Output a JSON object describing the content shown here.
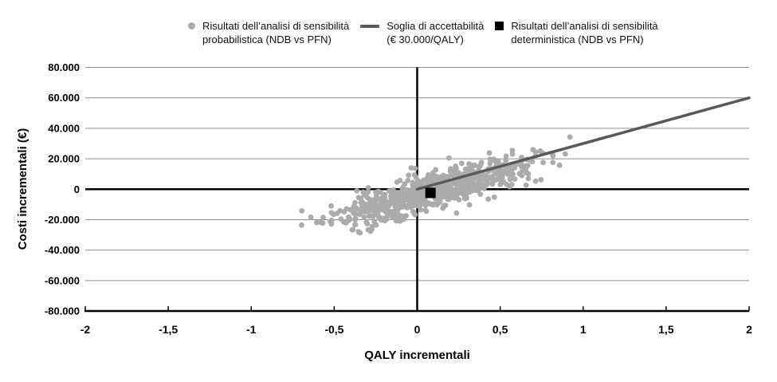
{
  "figure": {
    "background": "#ffffff"
  },
  "legend": {
    "items": [
      {
        "marker": "dot",
        "color": "#ababab",
        "label": "Risultati dell’analisi di sensibilità\nprobabilistica (NDB vs PFN)"
      },
      {
        "marker": "line",
        "color": "#595959",
        "label": "Soglia di accettabilità\n(€ 30.000/QALY)"
      },
      {
        "marker": "square",
        "color": "#000000",
        "label": "Risultati dell’analisi di sensibilità\ndeterministica (NDB vs PFN)"
      }
    ]
  },
  "chart_data": {
    "type": "scatter",
    "title": "",
    "xlabel": "QALY incrementali",
    "ylabel": "Costi incrementali (€)",
    "xlim": [
      -2,
      2
    ],
    "ylim": [
      -80000,
      80000
    ],
    "grid": true,
    "legend_position": "top",
    "x_ticks": [
      {
        "v": -2,
        "label": "-2"
      },
      {
        "v": -1.5,
        "label": "-1,5"
      },
      {
        "v": -1,
        "label": "-1"
      },
      {
        "v": -0.5,
        "label": "-0,5"
      },
      {
        "v": 0,
        "label": "0"
      },
      {
        "v": 0.5,
        "label": "0,5"
      },
      {
        "v": 1,
        "label": "1"
      },
      {
        "v": 1.5,
        "label": "1,5"
      },
      {
        "v": 2,
        "label": "2"
      }
    ],
    "y_ticks": [
      {
        "v": 80000,
        "label": "80.000"
      },
      {
        "v": 60000,
        "label": "60.000"
      },
      {
        "v": 40000,
        "label": "40.000"
      },
      {
        "v": 20000,
        "label": "20.000"
      },
      {
        "v": 0,
        "label": "0"
      },
      {
        "v": -20000,
        "label": "-20.000"
      },
      {
        "v": -40000,
        "label": "-40.000"
      },
      {
        "v": -60000,
        "label": "-60.000"
      },
      {
        "v": -80000,
        "label": "-80.000"
      }
    ],
    "colors": {
      "points": "#ababab",
      "threshold_line": "#595959",
      "deterministic_point": "#000000",
      "gridline": "#8f8f8f",
      "axis": "#000000"
    },
    "series": [
      {
        "name": "Risultati dell’analisi di sensibilità probabilistica (NDB vs PFN)",
        "type": "scatter-cloud",
        "color": "#ababab",
        "marker_radius": 3.4,
        "n": 720,
        "seed": 11,
        "center": [
          0.08,
          -1500
        ],
        "sd": [
          0.29,
          10500
        ],
        "correlation": 0.82,
        "x_range": [
          -0.92,
          0.99
        ],
        "y_range": [
          -29000,
          35000
        ]
      },
      {
        "name": "Soglia di accettabilità (€ 30.000/QALY)",
        "type": "line",
        "color": "#595959",
        "width": 3.5,
        "points": [
          [
            0,
            0
          ],
          [
            2,
            60000
          ]
        ]
      },
      {
        "name": "Risultati dell’analisi di sensibilità deterministica (NDB vs PFN)",
        "type": "point-square",
        "color": "#000000",
        "size": 13,
        "point": [
          0.08,
          -2400
        ]
      }
    ]
  }
}
